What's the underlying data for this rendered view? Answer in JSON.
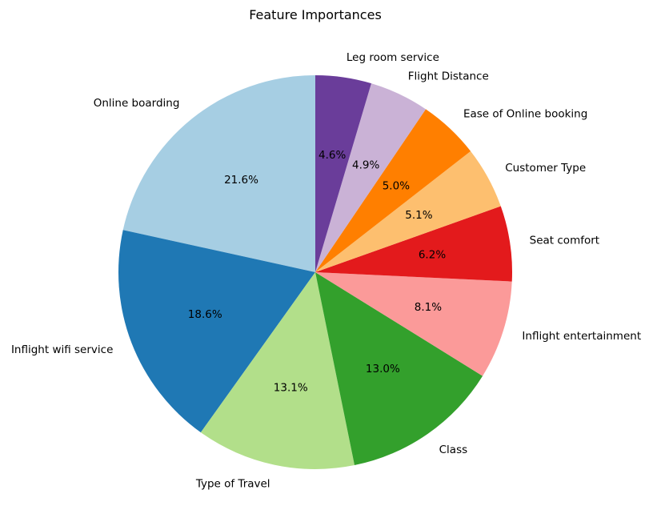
{
  "chart_data": {
    "type": "pie",
    "title": "Feature Importances",
    "start_angle_deg": 90,
    "direction": "counterclockwise",
    "slices": [
      {
        "label": "Online boarding",
        "value": 21.6,
        "pct_label": "21.6%",
        "color": "#a6cee3"
      },
      {
        "label": "Inflight wifi service",
        "value": 18.6,
        "pct_label": "18.6%",
        "color": "#1f78b4"
      },
      {
        "label": "Type of Travel",
        "value": 13.1,
        "pct_label": "13.1%",
        "color": "#b2df8a"
      },
      {
        "label": "Class",
        "value": 13.0,
        "pct_label": "13.0%",
        "color": "#33a02c"
      },
      {
        "label": "Inflight entertainment",
        "value": 8.1,
        "pct_label": "8.1%",
        "color": "#fb9a99"
      },
      {
        "label": "Seat comfort",
        "value": 6.2,
        "pct_label": "6.2%",
        "color": "#e31a1c"
      },
      {
        "label": "Customer Type",
        "value": 5.1,
        "pct_label": "5.1%",
        "color": "#fdbf6f"
      },
      {
        "label": "Ease of Online booking",
        "value": 5.0,
        "pct_label": "5.0%",
        "color": "#ff7f00"
      },
      {
        "label": "Flight Distance",
        "value": 4.9,
        "pct_label": "4.9%",
        "color": "#cab2d6"
      },
      {
        "label": "Leg room service",
        "value": 4.6,
        "pct_label": "4.6%",
        "color": "#6a3d9a"
      }
    ]
  }
}
